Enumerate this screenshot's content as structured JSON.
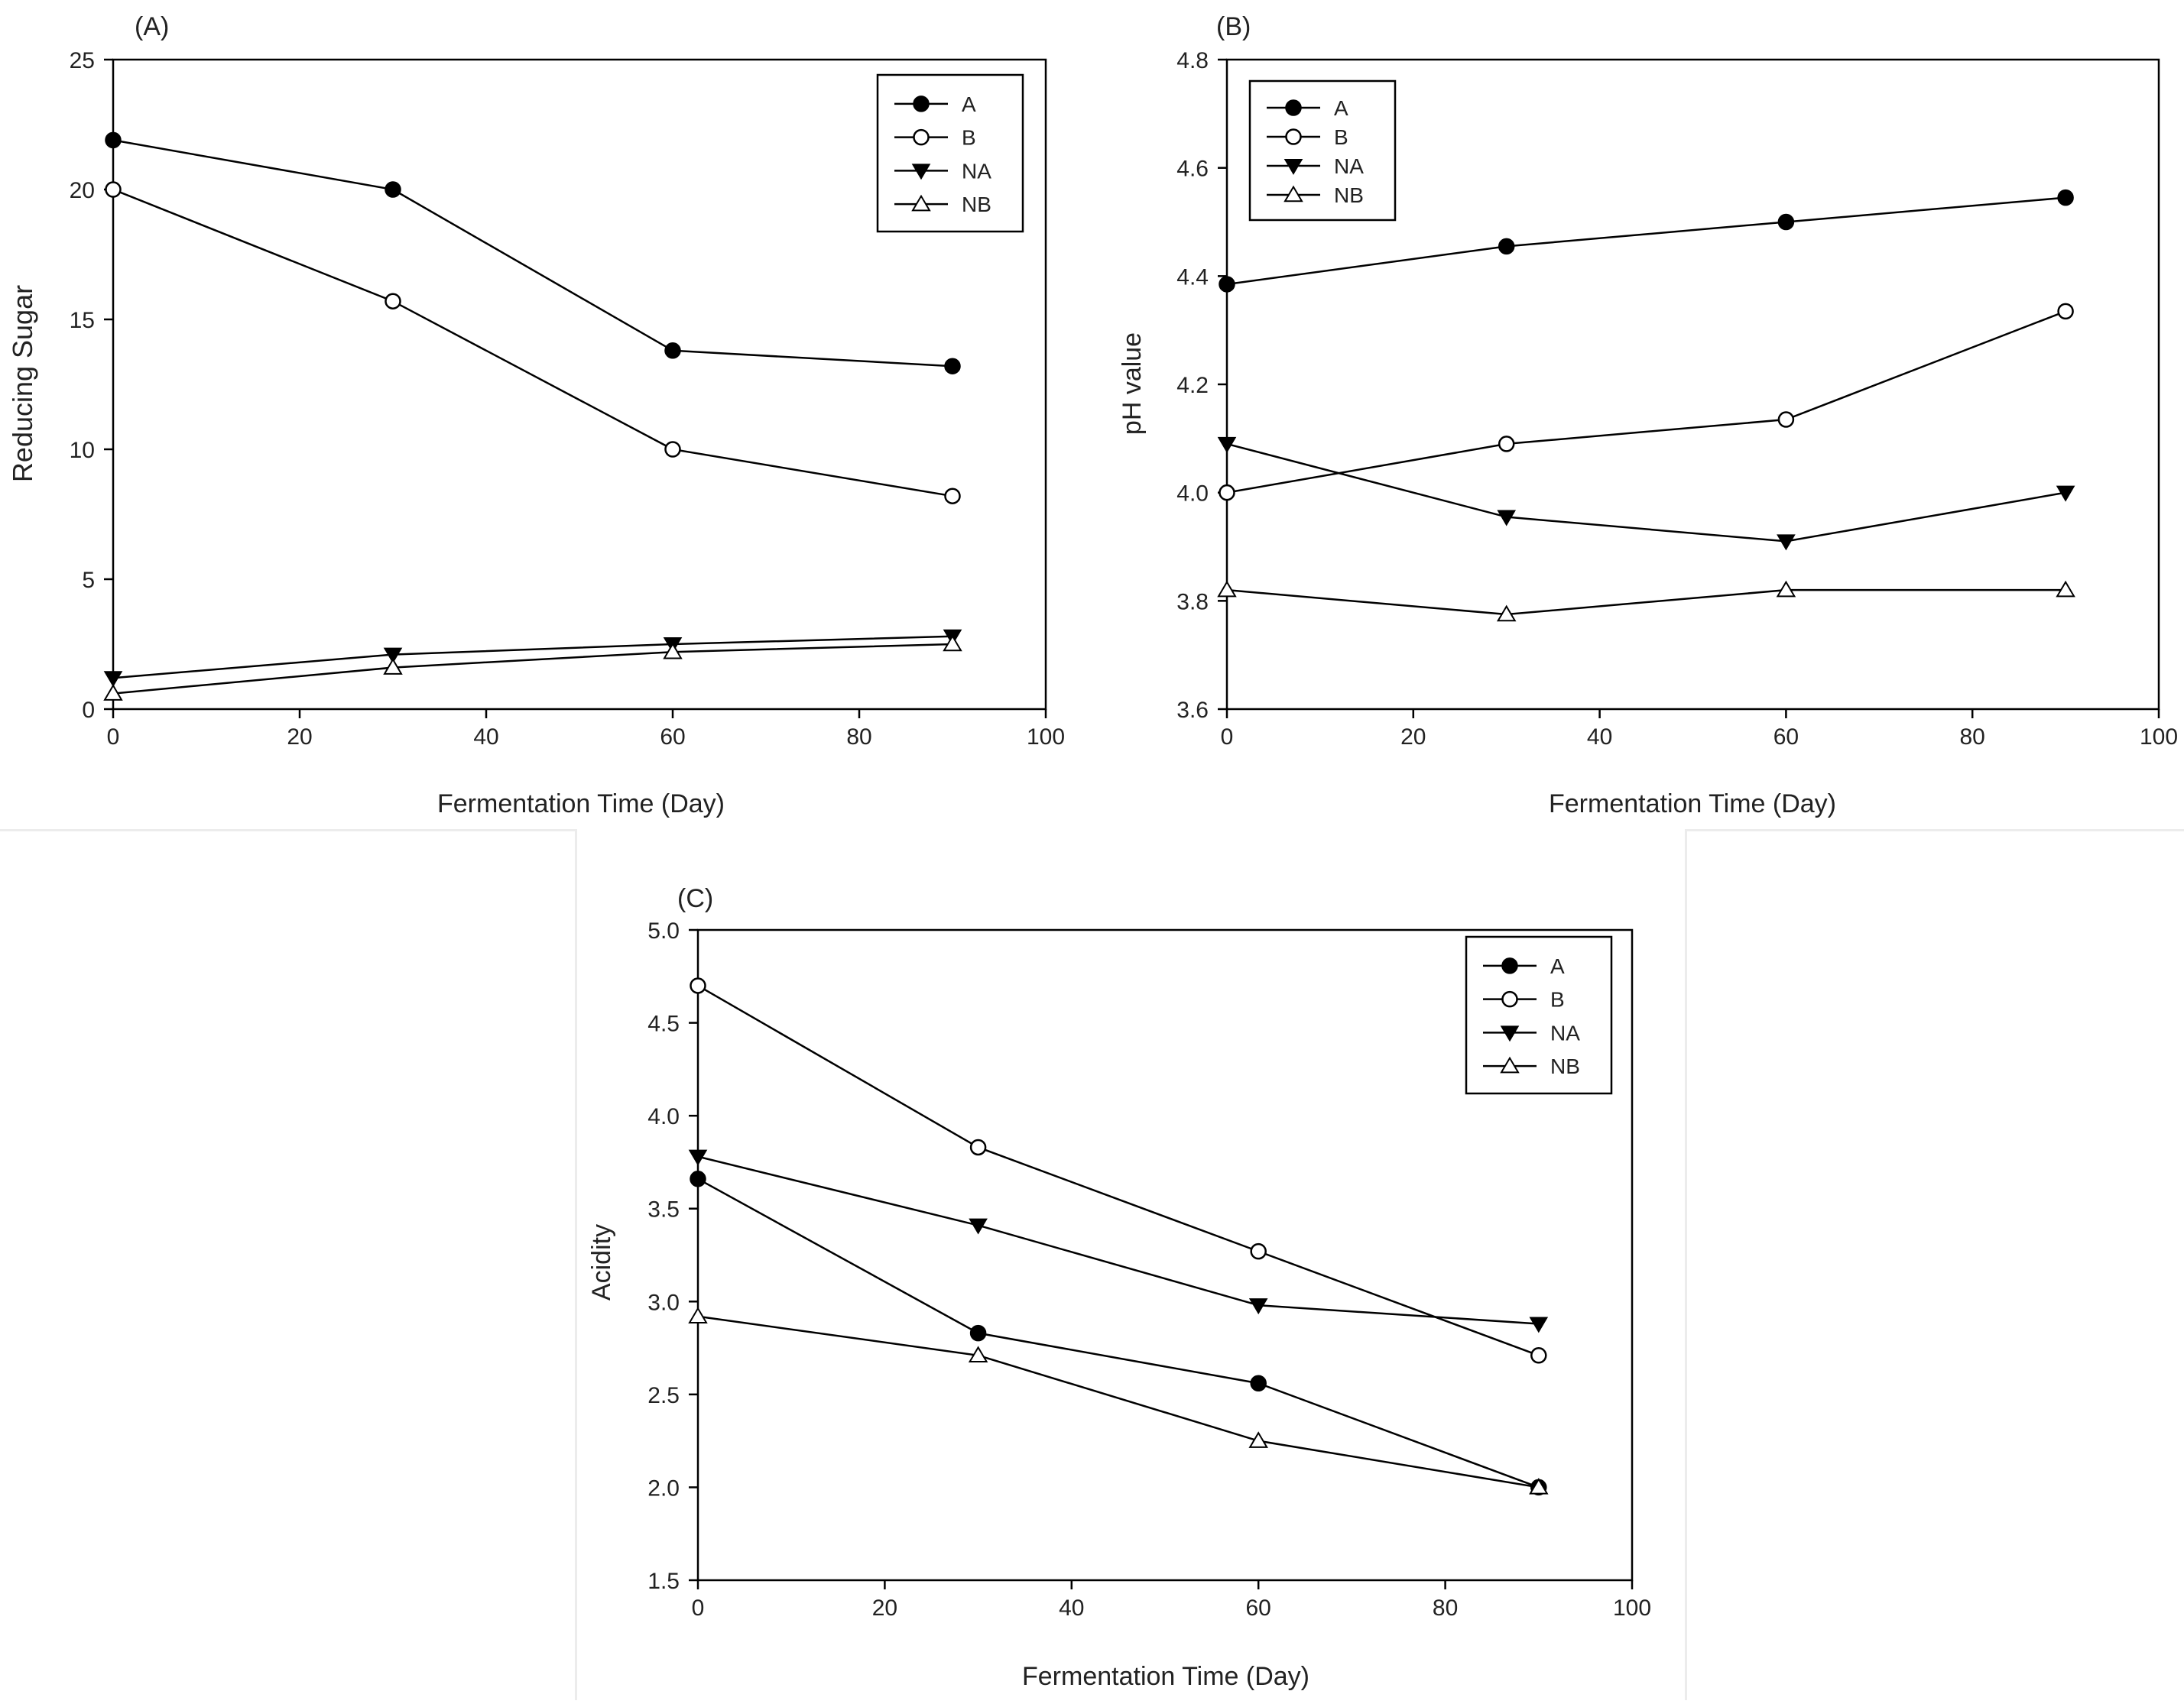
{
  "chart_data": [
    {
      "type": "line",
      "panel_label": "(A)",
      "title": "",
      "xlabel": "Fermentation Time (Day)",
      "ylabel": "Reducing Sugar",
      "xlim": [
        0,
        100
      ],
      "ylim": [
        0,
        25
      ],
      "xticks": [
        0,
        20,
        40,
        60,
        80,
        100
      ],
      "yticks": [
        0,
        5,
        10,
        15,
        20,
        25
      ],
      "xtick_labels": [
        "0",
        "20",
        "40",
        "60",
        "80",
        "100"
      ],
      "ytick_labels": [
        "0",
        "5",
        "10",
        "15",
        "20",
        "25"
      ],
      "legend_position": "top-right",
      "x": [
        0,
        30,
        60,
        90
      ],
      "series": [
        {
          "name": "A",
          "marker": "filled-circle",
          "values": [
            21.9,
            20.0,
            13.8,
            13.2
          ]
        },
        {
          "name": "B",
          "marker": "open-circle",
          "values": [
            20.0,
            15.7,
            10.0,
            8.2
          ]
        },
        {
          "name": "NA",
          "marker": "filled-triangle-down",
          "values": [
            1.2,
            2.1,
            2.5,
            2.8
          ]
        },
        {
          "name": "NB",
          "marker": "open-triangle-up",
          "values": [
            0.6,
            1.6,
            2.2,
            2.5
          ]
        }
      ]
    },
    {
      "type": "line",
      "panel_label": "(B)",
      "title": "",
      "xlabel": "Fermentation Time (Day)",
      "ylabel": "pH value",
      "xlim": [
        0,
        100
      ],
      "ylim": [
        3.6,
        4.8
      ],
      "xticks": [
        0,
        20,
        40,
        60,
        80,
        100
      ],
      "yticks": [
        3.6,
        3.8,
        4.0,
        4.2,
        4.4,
        4.6,
        4.8
      ],
      "xtick_labels": [
        "0",
        "20",
        "40",
        "60",
        "80",
        "100"
      ],
      "ytick_labels": [
        "3.6",
        "3.8",
        "4.0",
        "4.2",
        "4.4",
        "4.6",
        "4.8"
      ],
      "legend_position": "top-left",
      "x": [
        0,
        30,
        60,
        90
      ],
      "series": [
        {
          "name": "A",
          "marker": "filled-circle",
          "values": [
            4.385,
            4.455,
            4.5,
            4.545
          ]
        },
        {
          "name": "B",
          "marker": "open-circle",
          "values": [
            4.0,
            4.09,
            4.135,
            4.335
          ]
        },
        {
          "name": "NA",
          "marker": "filled-triangle-down",
          "values": [
            4.09,
            3.955,
            3.91,
            4.0
          ]
        },
        {
          "name": "NB",
          "marker": "open-triangle-up",
          "values": [
            3.82,
            3.775,
            3.82,
            3.82
          ]
        }
      ]
    },
    {
      "type": "line",
      "panel_label": "(C)",
      "title": "",
      "xlabel": "Fermentation Time (Day)",
      "ylabel": "Acidity",
      "xlim": [
        0,
        100
      ],
      "ylim": [
        1.5,
        5.0
      ],
      "xticks": [
        0,
        20,
        40,
        60,
        80,
        100
      ],
      "yticks": [
        1.5,
        2.0,
        2.5,
        3.0,
        3.5,
        4.0,
        4.5,
        5.0
      ],
      "xtick_labels": [
        "0",
        "20",
        "40",
        "60",
        "80",
        "100"
      ],
      "ytick_labels": [
        "1.5",
        "2.0",
        "2.5",
        "3.0",
        "3.5",
        "4.0",
        "4.5",
        "5.0"
      ],
      "legend_position": "top-right",
      "x": [
        0,
        30,
        60,
        90
      ],
      "series": [
        {
          "name": "A",
          "marker": "filled-circle",
          "values": [
            3.66,
            2.83,
            2.56,
            2.0
          ]
        },
        {
          "name": "B",
          "marker": "open-circle",
          "values": [
            4.7,
            3.83,
            3.27,
            2.71
          ]
        },
        {
          "name": "NA",
          "marker": "filled-triangle-down",
          "values": [
            3.78,
            3.41,
            2.98,
            2.88
          ]
        },
        {
          "name": "NB",
          "marker": "open-triangle-up",
          "values": [
            2.92,
            2.71,
            2.25,
            2.0
          ]
        }
      ]
    }
  ]
}
